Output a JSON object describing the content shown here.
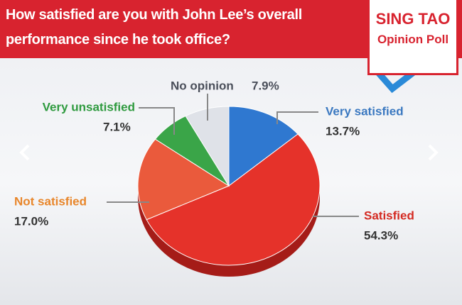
{
  "header": {
    "logo_line1": "SING TAO",
    "logo_line2": "Opinion Poll"
  },
  "chart_data": {
    "type": "pie",
    "title": "How satisfied are you with John Lee’s overall performance since he took office?",
    "categories": [
      "Very satisfied",
      "Satisfied",
      "Not satisfied",
      "Very unsatisfied",
      "No opinion"
    ],
    "values": [
      13.7,
      54.3,
      17,
      7.1,
      7.9
    ],
    "value_labels": [
      "13.7%",
      "54.3%",
      "17.0%",
      "7.1%",
      "7.9%"
    ],
    "colors": [
      "#2f78d0",
      "#e5322a",
      "#ea5a3c",
      "#3aa548",
      "#dfe2e8"
    ],
    "label_colors": [
      "#3a78c0",
      "#d42a22",
      "#e8862a",
      "#2e9a3e",
      "#4a4f5a"
    ]
  }
}
